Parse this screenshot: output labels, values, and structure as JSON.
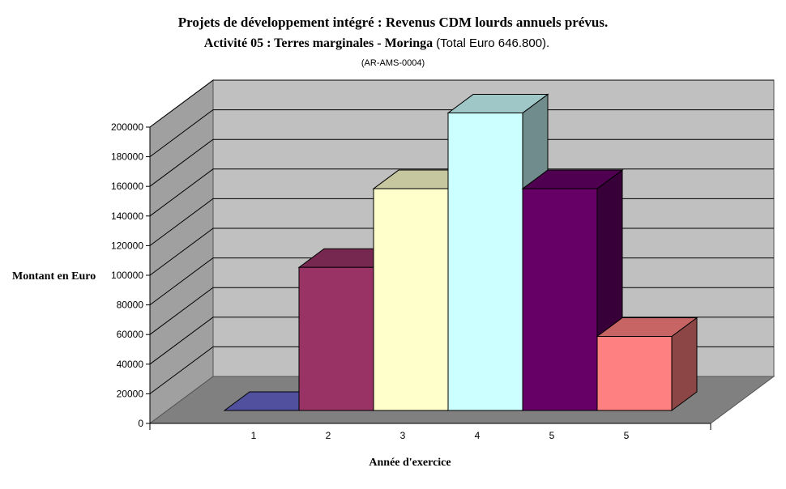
{
  "chart_data": {
    "type": "bar",
    "title_line1": "Projets de développement intégré : Revenus CDM lourds annuels prévus.",
    "title_line2_bold": "Activité 05 : Terres marginales - Moringa",
    "title_line2_rest": "(Total Euro 646.800).",
    "subtitle": "(AR-AMS-0004)",
    "xlabel": "Année d'exercice",
    "ylabel": "Montant en Euro",
    "categories": [
      "1",
      "2",
      "3",
      "4",
      "5",
      "5"
    ],
    "values": [
      0,
      96600,
      149700,
      200800,
      149700,
      50000
    ],
    "bar_colors": [
      "#6666cc",
      "#993366",
      "#ffffcc",
      "#ccffff",
      "#660066",
      "#ff8080"
    ],
    "ylim": [
      0,
      200000
    ],
    "yticks": [
      "0",
      "20000",
      "40000",
      "60000",
      "80000",
      "100000",
      "120000",
      "140000",
      "160000",
      "180000",
      "200000"
    ],
    "grid": true,
    "legend": "none",
    "style": "3d-column"
  }
}
